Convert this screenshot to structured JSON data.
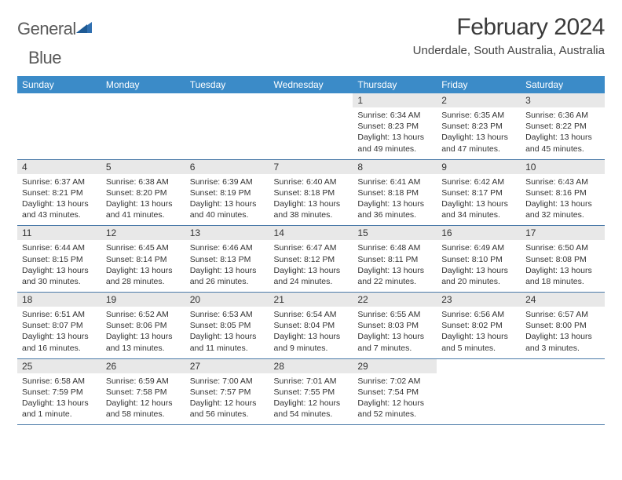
{
  "logo": {
    "text1": "General",
    "text2": "Blue"
  },
  "title": "February 2024",
  "location": "Underdale, South Australia, Australia",
  "weekdays": [
    "Sunday",
    "Monday",
    "Tuesday",
    "Wednesday",
    "Thursday",
    "Friday",
    "Saturday"
  ],
  "colors": {
    "header_bg": "#3b8bc8",
    "header_text": "#ffffff",
    "daynum_bg": "#e8e8e8",
    "rule": "#4a7aa8",
    "logo_gray": "#5a5a5a",
    "logo_blue": "#2f6fb0",
    "text": "#333333"
  },
  "weeks": [
    [
      null,
      null,
      null,
      null,
      {
        "n": "1",
        "sr": "6:34 AM",
        "ss": "8:23 PM",
        "dl": "13 hours and 49 minutes."
      },
      {
        "n": "2",
        "sr": "6:35 AM",
        "ss": "8:23 PM",
        "dl": "13 hours and 47 minutes."
      },
      {
        "n": "3",
        "sr": "6:36 AM",
        "ss": "8:22 PM",
        "dl": "13 hours and 45 minutes."
      }
    ],
    [
      {
        "n": "4",
        "sr": "6:37 AM",
        "ss": "8:21 PM",
        "dl": "13 hours and 43 minutes."
      },
      {
        "n": "5",
        "sr": "6:38 AM",
        "ss": "8:20 PM",
        "dl": "13 hours and 41 minutes."
      },
      {
        "n": "6",
        "sr": "6:39 AM",
        "ss": "8:19 PM",
        "dl": "13 hours and 40 minutes."
      },
      {
        "n": "7",
        "sr": "6:40 AM",
        "ss": "8:18 PM",
        "dl": "13 hours and 38 minutes."
      },
      {
        "n": "8",
        "sr": "6:41 AM",
        "ss": "8:18 PM",
        "dl": "13 hours and 36 minutes."
      },
      {
        "n": "9",
        "sr": "6:42 AM",
        "ss": "8:17 PM",
        "dl": "13 hours and 34 minutes."
      },
      {
        "n": "10",
        "sr": "6:43 AM",
        "ss": "8:16 PM",
        "dl": "13 hours and 32 minutes."
      }
    ],
    [
      {
        "n": "11",
        "sr": "6:44 AM",
        "ss": "8:15 PM",
        "dl": "13 hours and 30 minutes."
      },
      {
        "n": "12",
        "sr": "6:45 AM",
        "ss": "8:14 PM",
        "dl": "13 hours and 28 minutes."
      },
      {
        "n": "13",
        "sr": "6:46 AM",
        "ss": "8:13 PM",
        "dl": "13 hours and 26 minutes."
      },
      {
        "n": "14",
        "sr": "6:47 AM",
        "ss": "8:12 PM",
        "dl": "13 hours and 24 minutes."
      },
      {
        "n": "15",
        "sr": "6:48 AM",
        "ss": "8:11 PM",
        "dl": "13 hours and 22 minutes."
      },
      {
        "n": "16",
        "sr": "6:49 AM",
        "ss": "8:10 PM",
        "dl": "13 hours and 20 minutes."
      },
      {
        "n": "17",
        "sr": "6:50 AM",
        "ss": "8:08 PM",
        "dl": "13 hours and 18 minutes."
      }
    ],
    [
      {
        "n": "18",
        "sr": "6:51 AM",
        "ss": "8:07 PM",
        "dl": "13 hours and 16 minutes."
      },
      {
        "n": "19",
        "sr": "6:52 AM",
        "ss": "8:06 PM",
        "dl": "13 hours and 13 minutes."
      },
      {
        "n": "20",
        "sr": "6:53 AM",
        "ss": "8:05 PM",
        "dl": "13 hours and 11 minutes."
      },
      {
        "n": "21",
        "sr": "6:54 AM",
        "ss": "8:04 PM",
        "dl": "13 hours and 9 minutes."
      },
      {
        "n": "22",
        "sr": "6:55 AM",
        "ss": "8:03 PM",
        "dl": "13 hours and 7 minutes."
      },
      {
        "n": "23",
        "sr": "6:56 AM",
        "ss": "8:02 PM",
        "dl": "13 hours and 5 minutes."
      },
      {
        "n": "24",
        "sr": "6:57 AM",
        "ss": "8:00 PM",
        "dl": "13 hours and 3 minutes."
      }
    ],
    [
      {
        "n": "25",
        "sr": "6:58 AM",
        "ss": "7:59 PM",
        "dl": "13 hours and 1 minute."
      },
      {
        "n": "26",
        "sr": "6:59 AM",
        "ss": "7:58 PM",
        "dl": "12 hours and 58 minutes."
      },
      {
        "n": "27",
        "sr": "7:00 AM",
        "ss": "7:57 PM",
        "dl": "12 hours and 56 minutes."
      },
      {
        "n": "28",
        "sr": "7:01 AM",
        "ss": "7:55 PM",
        "dl": "12 hours and 54 minutes."
      },
      {
        "n": "29",
        "sr": "7:02 AM",
        "ss": "7:54 PM",
        "dl": "12 hours and 52 minutes."
      },
      null,
      null
    ]
  ],
  "labels": {
    "sunrise": "Sunrise:",
    "sunset": "Sunset:",
    "daylight": "Daylight:"
  }
}
